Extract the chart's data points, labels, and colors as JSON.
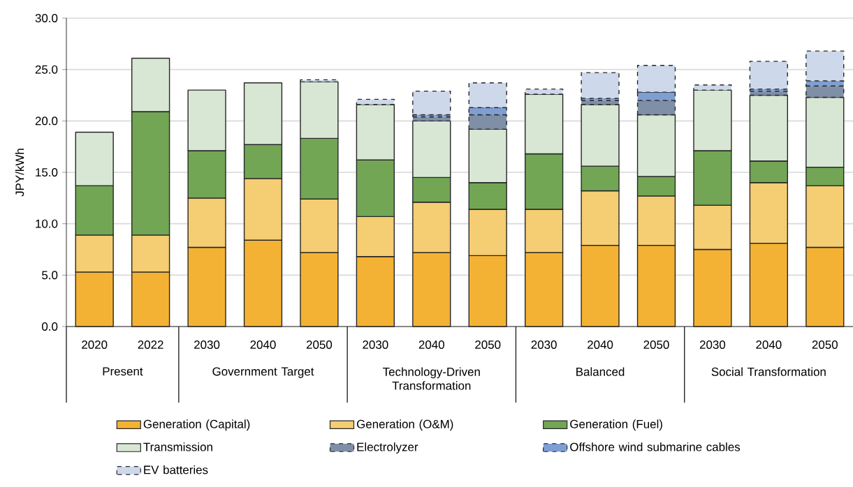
{
  "chart_data": {
    "type": "bar",
    "stacked": true,
    "ylabel": "JPY/kWh",
    "categories": [
      "2020",
      "2022",
      "2030",
      "2040",
      "2050",
      "2030",
      "2040",
      "2050",
      "2030",
      "2040",
      "2050",
      "2030",
      "2040",
      "2050"
    ],
    "annotations": [
      "Present",
      "Government Target",
      "Technology-Driven Transformation",
      "Balanced",
      "Social Transformation"
    ],
    "ylim": [
      0,
      30
    ],
    "yticks": [
      {
        "value": 0,
        "label": "0.0"
      },
      {
        "value": 5,
        "label": "5.0"
      },
      {
        "value": 10,
        "label": "10.0"
      },
      {
        "value": 15,
        "label": "15.0"
      },
      {
        "value": 20,
        "label": "20.0"
      },
      {
        "value": 25,
        "label": "25.0"
      },
      {
        "value": 30,
        "label": "30.0"
      }
    ],
    "grid": "y",
    "legend": "bottom",
    "series": [
      {
        "name": "Generation (Capital)",
        "color": "#f4b234",
        "values": [
          5.3,
          5.3,
          7.7,
          8.4,
          7.2,
          6.8,
          7.2,
          6.9,
          7.2,
          7.9,
          7.9,
          7.5,
          8.1,
          7.7
        ]
      },
      {
        "name": "Generation (O&M)",
        "color": "#f5cd72",
        "values": [
          3.6,
          3.6,
          4.8,
          6.0,
          5.2,
          3.9,
          4.9,
          4.5,
          4.2,
          5.3,
          4.8,
          4.3,
          5.9,
          6.0
        ]
      },
      {
        "name": "Generation (Fuel)",
        "color": "#72a655",
        "values": [
          4.8,
          12.0,
          4.6,
          3.3,
          5.9,
          5.5,
          2.4,
          2.6,
          5.4,
          2.4,
          1.9,
          5.3,
          2.1,
          1.8
        ]
      },
      {
        "name": "Transmission",
        "color": "#d8e7d3",
        "values": [
          5.2,
          5.2,
          5.9,
          6.0,
          5.5,
          5.4,
          5.5,
          5.2,
          5.8,
          6.0,
          6.0,
          5.9,
          6.4,
          6.8
        ]
      },
      {
        "name": "Electrolyzer",
        "color": "#7f8fa6",
        "line_style": "dashed",
        "values": [
          null,
          null,
          null,
          null,
          null,
          null,
          0.4,
          1.4,
          null,
          0.4,
          1.4,
          null,
          0.4,
          1.1
        ]
      },
      {
        "name": "Offshore wind submarine cables",
        "color": "#7f9fd3",
        "line_style": "dashed",
        "values": [
          null,
          null,
          null,
          null,
          null,
          null,
          0.2,
          0.7,
          null,
          0.2,
          0.8,
          null,
          0.2,
          0.5
        ]
      },
      {
        "name": "EV batteries",
        "color": "#cdd9ea",
        "line_style": "dashed",
        "values": [
          null,
          null,
          null,
          null,
          0.2,
          0.5,
          2.3,
          2.4,
          0.5,
          2.5,
          2.6,
          0.5,
          2.7,
          2.9
        ]
      }
    ]
  }
}
